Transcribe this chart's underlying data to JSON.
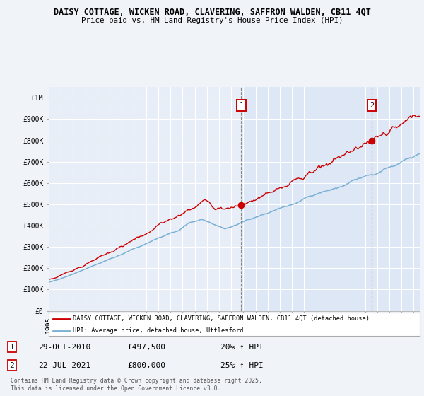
{
  "title_line1": "DAISY COTTAGE, WICKEN ROAD, CLAVERING, SAFFRON WALDEN, CB11 4QT",
  "title_line2": "Price paid vs. HM Land Registry's House Price Index (HPI)",
  "ytick_values": [
    0,
    100000,
    200000,
    300000,
    400000,
    500000,
    600000,
    700000,
    800000,
    900000,
    1000000
  ],
  "ytick_labels": [
    "£0",
    "£100K",
    "£200K",
    "£300K",
    "£400K",
    "£500K",
    "£600K",
    "£700K",
    "£800K",
    "£900K",
    "£1M"
  ],
  "fig_bg": "#f0f4f8",
  "plot_bg_left": "#e8eef7",
  "plot_bg_right": "#dde7f5",
  "grid_color": "#ffffff",
  "red_color": "#cc0000",
  "blue_color": "#7ab0d4",
  "sale1_year": 2010.83,
  "sale1_price": 497500,
  "sale1_date": "29-OCT-2010",
  "sale1_hpi_label": "20% ↑ HPI",
  "sale2_year": 2021.56,
  "sale2_price": 800000,
  "sale2_date": "22-JUL-2021",
  "sale2_hpi_label": "25% ↑ HPI",
  "legend_label1": "DAISY COTTAGE, WICKEN ROAD, CLAVERING, SAFFRON WALDEN, CB11 4QT (detached house)",
  "legend_label2": "HPI: Average price, detached house, Uttlesford",
  "footer": "Contains HM Land Registry data © Crown copyright and database right 2025.\nThis data is licensed under the Open Government Licence v3.0.",
  "xstart": 1995,
  "xend": 2025.5,
  "ymax": 1000000
}
